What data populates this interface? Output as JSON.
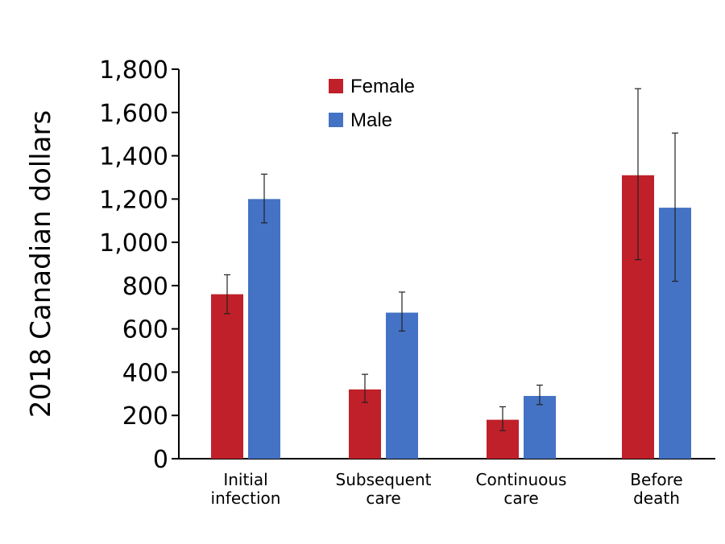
{
  "chart_data": {
    "type": "bar",
    "categories": [
      [
        "Initial",
        "infection"
      ],
      [
        "Subsequent",
        "care"
      ],
      [
        "Continuous",
        "care"
      ],
      [
        "Before",
        "death"
      ]
    ],
    "series": [
      {
        "name": "Female",
        "color": "#c0202a",
        "values": [
          760,
          320,
          180,
          1310
        ],
        "err_low": [
          670,
          260,
          130,
          920
        ],
        "err_high": [
          850,
          390,
          240,
          1710
        ]
      },
      {
        "name": "Male",
        "color": "#4472c4",
        "values": [
          1200,
          675,
          290,
          1160
        ],
        "err_low": [
          1090,
          590,
          250,
          820
        ],
        "err_high": [
          1315,
          770,
          340,
          1505
        ]
      }
    ],
    "ylabel": "2018 Canadian dollars",
    "ylim": [
      0,
      1800
    ],
    "yticks": [
      0,
      200,
      400,
      600,
      800,
      1000,
      1200,
      1400,
      1600,
      1800
    ],
    "ytick_labels": [
      "0",
      "200",
      "400",
      "600",
      "800",
      "1,000",
      "1,200",
      "1,400",
      "1,600",
      "1,800"
    ],
    "legend_position": "top-center",
    "grid": false
  }
}
